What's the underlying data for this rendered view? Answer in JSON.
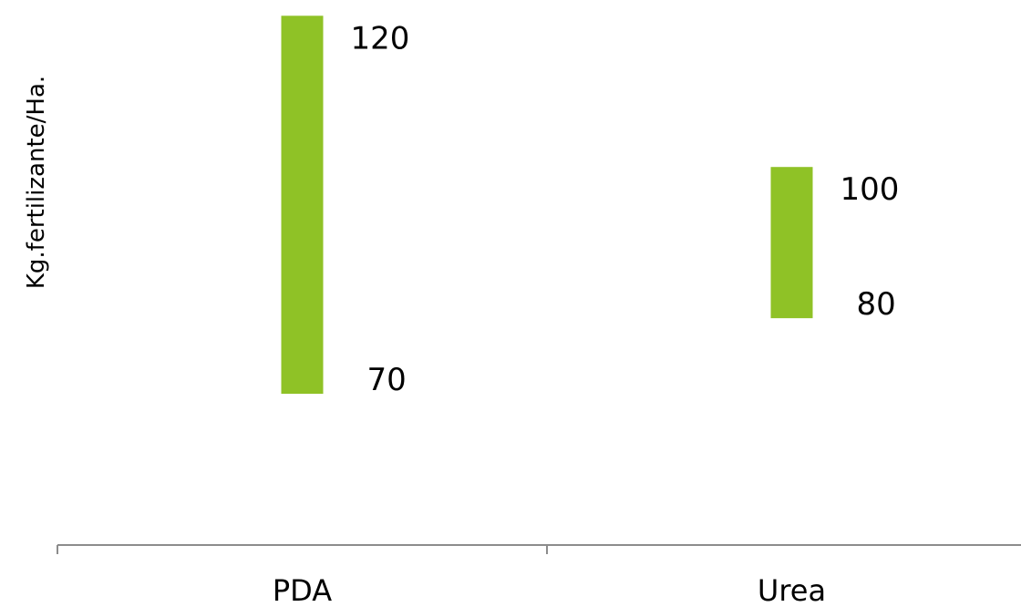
{
  "chart_data": {
    "type": "bar",
    "subtype": "floating-range",
    "categories": [
      "PDA",
      "Urea"
    ],
    "series": [
      {
        "low": [
          70,
          80
        ],
        "high": [
          120,
          100
        ],
        "low_labels": [
          "70",
          "80"
        ],
        "high_labels": [
          "120",
          "100"
        ]
      }
    ],
    "title": "",
    "xlabel": "",
    "ylabel": "Kg.fertilizante/Ha.",
    "ylim": [
      50,
      121
    ],
    "grid": false,
    "legend": "none",
    "colors": {
      "bar": "#8fc226",
      "axis": "#8c8c8c",
      "text": "#000000"
    }
  }
}
